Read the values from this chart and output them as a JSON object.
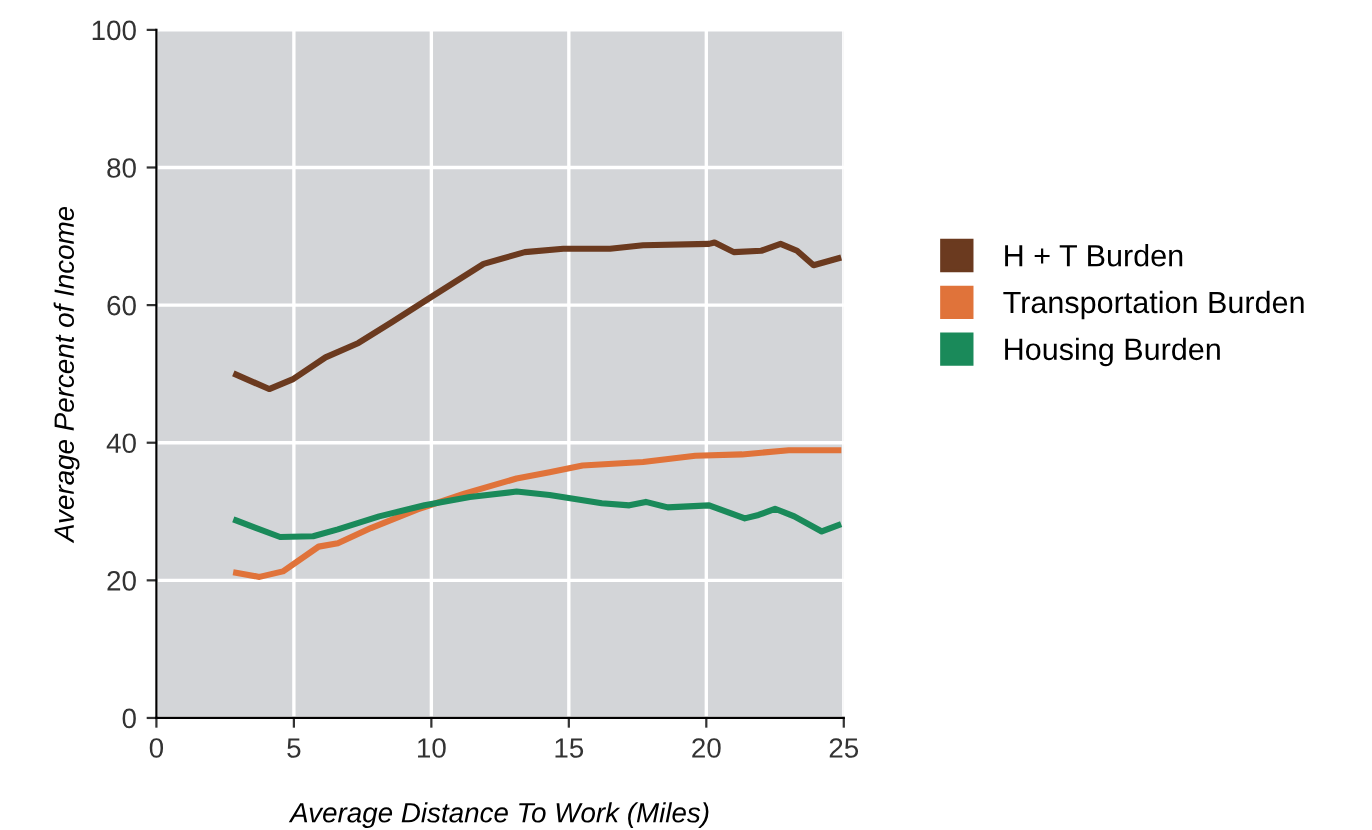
{
  "chart_data": {
    "type": "line",
    "xlabel": "Average Distance To Work (Miles)",
    "ylabel": "Average Percent of Income",
    "xlim": [
      0,
      25
    ],
    "xticks": [
      0,
      5,
      10,
      15,
      20,
      25
    ],
    "ylim": [
      0,
      100
    ],
    "yticks": [
      0,
      20,
      40,
      60,
      80,
      100
    ],
    "grid": true,
    "legend": "right",
    "marker": "none",
    "line_style": "solid",
    "series": [
      {
        "name": "H + T Burden",
        "color": "#6b3a1f",
        "x": [
          2.9,
          4.1,
          4.95,
          6.15,
          7.35,
          8.55,
          10,
          11.9,
          13.4,
          14.8,
          16.5,
          17.7,
          20.1,
          20.3,
          21,
          22,
          22.7,
          23.3,
          23.9,
          24.8
        ],
        "values": [
          49.9,
          47.8,
          49.2,
          52.4,
          54.5,
          57.5,
          61.2,
          66,
          67.7,
          68.2,
          68.2,
          68.7,
          68.9,
          69.1,
          67.7,
          67.9,
          68.9,
          67.9,
          65.8,
          66.8
        ]
      },
      {
        "name": "Transportation Burden",
        "color": "#e0733a",
        "x": [
          2.9,
          3.75,
          4.6,
          5.9,
          6.6,
          7.8,
          9.5,
          11.2,
          13.1,
          14.3,
          15.5,
          17.7,
          19.6,
          21.3,
          23,
          24.8
        ],
        "values": [
          21.1,
          20.5,
          21.3,
          24.9,
          25.4,
          27.6,
          30.3,
          32.6,
          34.8,
          35.7,
          36.7,
          37.2,
          38.1,
          38.3,
          38.9,
          38.9
        ]
      },
      {
        "name": "Housing Burden",
        "color": "#1a8a5a",
        "x": [
          2.9,
          4.5,
          5.7,
          6.6,
          8.1,
          9.75,
          11.4,
          13.1,
          14.3,
          16.2,
          17.2,
          17.8,
          18.6,
          20.1,
          21.4,
          21.9,
          22.5,
          23.2,
          24.2,
          24.8
        ],
        "values": [
          28.7,
          26.3,
          26.4,
          27.4,
          29.3,
          30.9,
          32.1,
          32.9,
          32.4,
          31.2,
          30.9,
          31.4,
          30.6,
          30.9,
          29,
          29.5,
          30.4,
          29.3,
          27.1,
          28
        ]
      }
    ]
  }
}
